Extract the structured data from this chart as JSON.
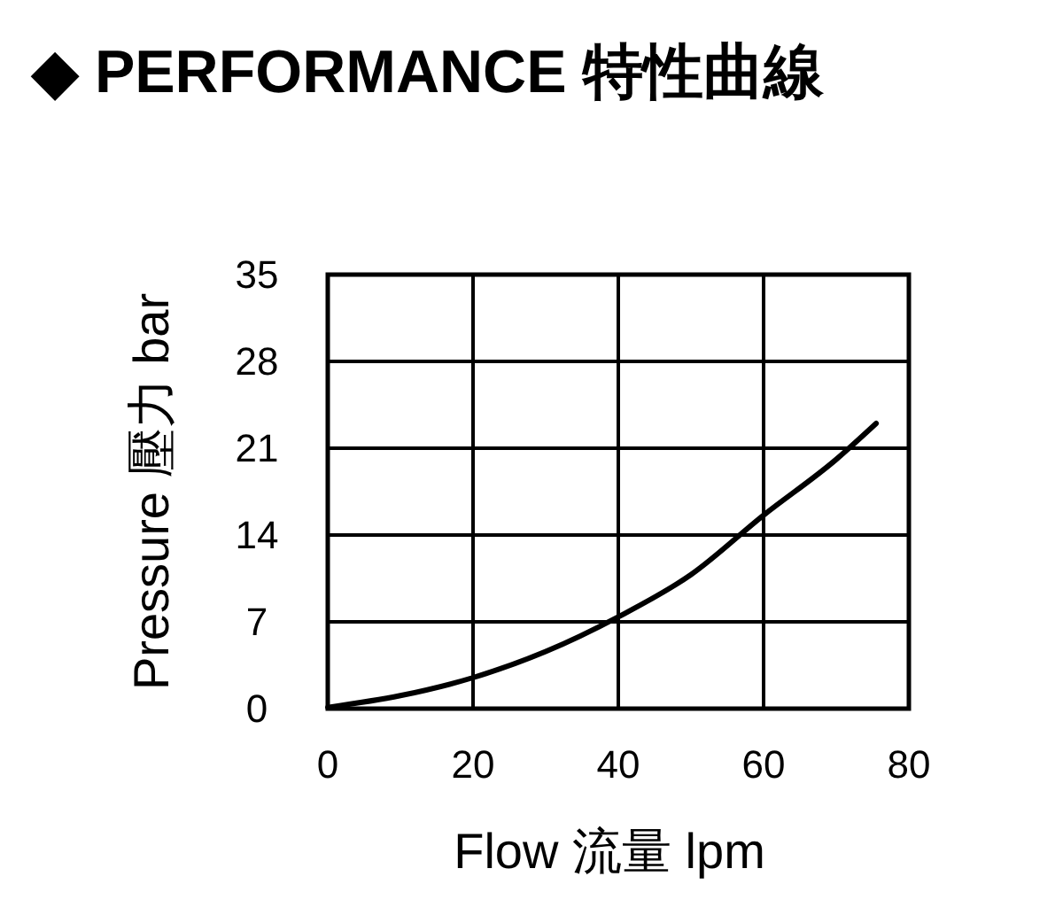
{
  "chart_data": {
    "type": "line",
    "title": "◆ PERFORMANCE 特性曲線",
    "xlabel": "Flow 流量 lpm",
    "ylabel": "Pressure 壓力 bar",
    "x": [
      0,
      10,
      20,
      30,
      40,
      50,
      60,
      70,
      75.5
    ],
    "series": [
      {
        "color": "#000000",
        "values": [
          0.1,
          1.05,
          2.5,
          4.6,
          7.4,
          10.8,
          15.6,
          20.1,
          23.0
        ]
      }
    ],
    "xlim": [
      0,
      80
    ],
    "xticks": [
      0,
      20,
      40,
      60,
      80
    ],
    "ylim": [
      0,
      35
    ],
    "yticks": [
      0,
      7,
      14,
      21,
      28,
      35
    ],
    "grid": true,
    "marker": "none",
    "line_style": "solid"
  }
}
